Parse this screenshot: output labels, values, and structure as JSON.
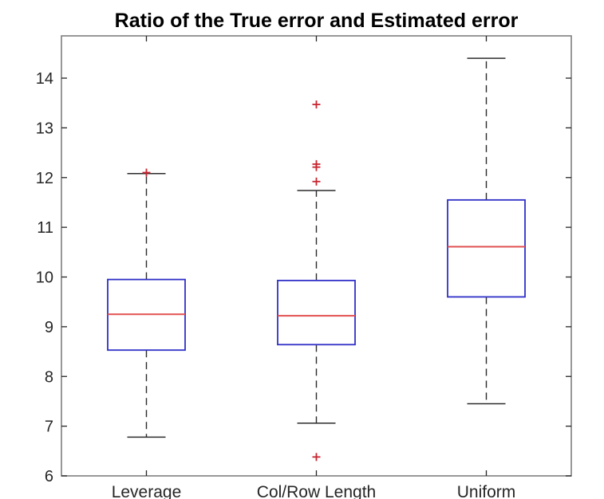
{
  "chart_data": {
    "type": "boxplot",
    "title": "Ratio of the True error and Estimated error",
    "categories": [
      "Leverage",
      "Col/Row Length",
      "Uniform"
    ],
    "xlabel": "",
    "ylabel": "",
    "ylim": [
      6,
      14.85
    ],
    "yticks": [
      6,
      7,
      8,
      9,
      10,
      11,
      12,
      13,
      14
    ],
    "grid": false,
    "legend": "none",
    "series": [
      {
        "name": "Leverage",
        "whisker_low": 6.78,
        "q1": 8.53,
        "median": 9.25,
        "q3": 9.95,
        "whisker_high": 12.08,
        "outliers": [
          12.1
        ]
      },
      {
        "name": "Col/Row Length",
        "whisker_low": 7.06,
        "q1": 8.64,
        "median": 9.22,
        "q3": 9.93,
        "whisker_high": 11.74,
        "outliers": [
          13.47,
          12.27,
          12.21,
          11.92,
          6.38
        ]
      },
      {
        "name": "Uniform",
        "whisker_low": 7.45,
        "q1": 9.6,
        "median": 10.61,
        "q3": 11.55,
        "whisker_high": 14.4,
        "outliers": []
      }
    ],
    "colors": {
      "box": "#3030c8",
      "median": "#e25050",
      "whisker": "#2b2b2b",
      "outlier": "#c8252f",
      "frame": "#7f7f7f",
      "text": "#262626",
      "background": "#ffffff"
    }
  }
}
